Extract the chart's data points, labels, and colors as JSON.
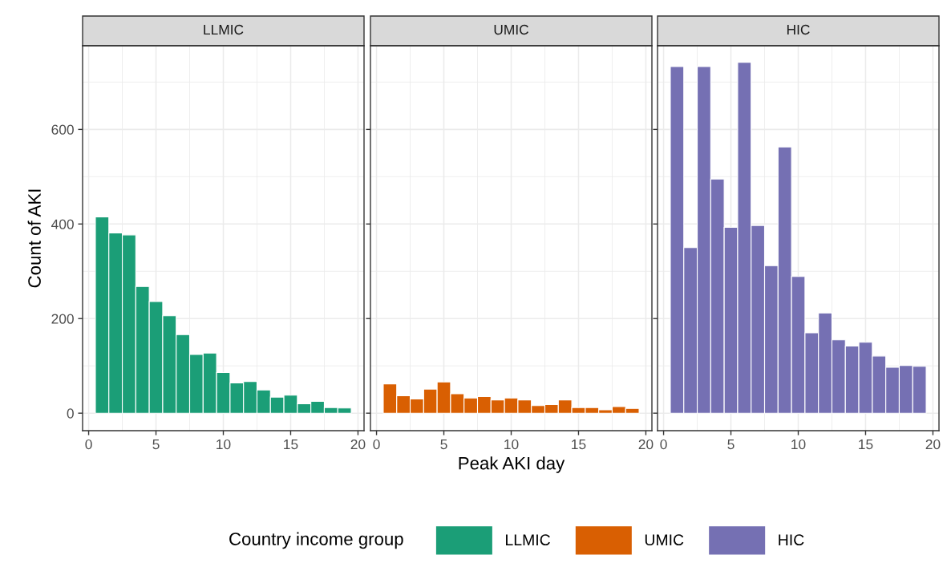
{
  "chart_data": [
    {
      "type": "histogram",
      "title": "LLMIC",
      "ylabel": "Count of AKI",
      "bins": [
        0.5,
        1.5,
        2.5,
        3.5,
        4.5,
        5.5,
        6.5,
        7.5,
        8.5,
        9.5,
        10.5,
        11.5,
        12.5,
        13.5,
        14.5,
        15.5,
        16.5,
        17.5,
        18.5,
        19.5
      ],
      "series": [
        {
          "name": "LLMIC",
          "color": "#1b9e77",
          "values": [
            415,
            381,
            377,
            268,
            236,
            206,
            166,
            124,
            127,
            86,
            64,
            67,
            49,
            34,
            38,
            20,
            25,
            12,
            11
          ]
        }
      ],
      "xlim": [
        -0.45,
        20.45
      ],
      "xticks": [
        0,
        5,
        10,
        15,
        20
      ],
      "ylim": [
        -37,
        777
      ],
      "yticks": [
        0,
        200,
        400,
        600
      ],
      "grid": true,
      "legend": "bottom",
      "legend_title": "Country income group"
    },
    {
      "type": "histogram",
      "title": "UMIC",
      "xlabel": "Peak AKI day",
      "bins": [
        0.5,
        1.5,
        2.5,
        3.5,
        4.5,
        5.5,
        6.5,
        7.5,
        8.5,
        9.5,
        10.5,
        11.5,
        12.5,
        13.5,
        14.5,
        15.5,
        16.5,
        17.5,
        18.5,
        19.5
      ],
      "series": [
        {
          "name": "UMIC",
          "color": "#d95f02",
          "values": [
            62,
            37,
            30,
            51,
            66,
            41,
            32,
            35,
            28,
            32,
            28,
            16,
            18,
            28,
            12,
            12,
            7,
            14,
            10
          ]
        }
      ],
      "xlim": [
        -0.45,
        20.45
      ],
      "xticks": [
        0,
        5,
        10,
        15,
        20
      ],
      "ylim": [
        -37,
        777
      ],
      "yticks": [
        0,
        200,
        400,
        600
      ],
      "grid": true,
      "legend": "bottom",
      "tick_labels": "x"
    },
    {
      "type": "histogram",
      "title": "HIC",
      "bins": [
        0.5,
        1.5,
        2.5,
        3.5,
        4.5,
        5.5,
        6.5,
        7.5,
        8.5,
        9.5,
        10.5,
        11.5,
        12.5,
        13.5,
        14.5,
        15.5,
        16.5,
        17.5,
        18.5,
        19.5
      ],
      "series": [
        {
          "name": "HIC",
          "color": "#7570b3",
          "values": [
            733,
            350,
            733,
            495,
            393,
            742,
            397,
            312,
            563,
            289,
            170,
            212,
            155,
            142,
            150,
            121,
            97,
            101,
            99
          ]
        }
      ],
      "xlim": [
        -0.45,
        20.45
      ],
      "xticks": [
        0,
        5,
        10,
        15,
        20
      ],
      "ylim": [
        -37,
        777
      ],
      "yticks": [
        0,
        200,
        400,
        600
      ],
      "grid": true,
      "legend": "bottom",
      "tick_labels": "x"
    }
  ]
}
